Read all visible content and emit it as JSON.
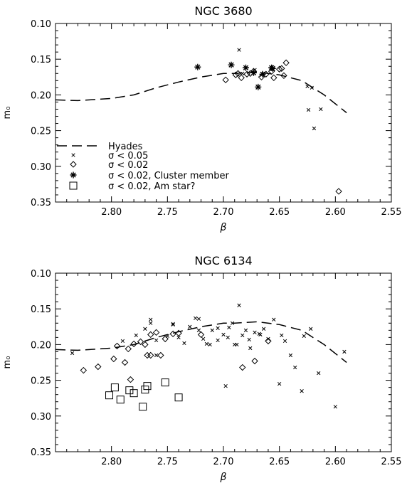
{
  "chart_data": [
    {
      "type": "scatter",
      "title": "NGC 3680",
      "xlabel": "β",
      "ylabel": "m₀",
      "xlim": [
        2.85,
        2.55
      ],
      "ylim": [
        0.1,
        0.35
      ],
      "x_ticks": [
        2.8,
        2.75,
        2.7,
        2.65,
        2.6,
        2.55
      ],
      "x_tick_labels": [
        "2.80",
        "2.75",
        "2.70",
        "2.65",
        "2.60",
        "2.55"
      ],
      "y_ticks": [
        0.1,
        0.15,
        0.2,
        0.25,
        0.3,
        0.35
      ],
      "y_tick_labels": [
        "0.10",
        "0.15",
        "0.20",
        "0.25",
        "0.30",
        "0.35"
      ],
      "grid": false,
      "legend_position": "bottom-left",
      "legend": [
        {
          "marker": "dashed-line",
          "label": "Hyades"
        },
        {
          "marker": "x",
          "label": "σ < 0.05"
        },
        {
          "marker": "diamond",
          "label": "σ < 0.02"
        },
        {
          "marker": "asterisk",
          "label": "σ < 0.02, Cluster member"
        },
        {
          "marker": "square",
          "label": "σ < 0.02, Am star?"
        }
      ],
      "hyades": {
        "x": [
          2.85,
          2.83,
          2.8,
          2.78,
          2.76,
          2.74,
          2.72,
          2.7,
          2.69,
          2.67,
          2.65,
          2.63,
          2.61,
          2.59
        ],
        "y": [
          0.207,
          0.208,
          0.205,
          0.2,
          0.19,
          0.182,
          0.175,
          0.17,
          0.17,
          0.168,
          0.172,
          0.18,
          0.2,
          0.225
        ]
      },
      "series": [
        {
          "marker": "x",
          "x": [
            2.686,
            2.625,
            2.621,
            2.613,
            2.624,
            2.619,
            2.672,
            2.683
          ],
          "y": [
            0.137,
            0.188,
            0.19,
            0.22,
            0.221,
            0.247,
            0.165,
            0.17
          ]
        },
        {
          "marker": "diamond",
          "x": [
            2.698,
            2.689,
            2.684,
            2.679,
            2.673,
            2.666,
            2.662,
            2.655,
            2.648,
            2.644,
            2.65,
            2.646,
            2.657,
            2.597,
            2.687,
            2.676
          ],
          "y": [
            0.179,
            0.172,
            0.176,
            0.171,
            0.167,
            0.175,
            0.171,
            0.176,
            0.163,
            0.155,
            0.164,
            0.173,
            0.167,
            0.335,
            0.17,
            0.17
          ]
        },
        {
          "marker": "asterisk",
          "x": [
            2.723,
            2.693,
            2.68,
            2.673,
            2.665,
            2.669,
            2.656,
            2.657
          ],
          "y": [
            0.161,
            0.158,
            0.162,
            0.169,
            0.171,
            0.189,
            0.163,
            0.162
          ]
        },
        {
          "marker": "square",
          "x": [],
          "y": []
        }
      ]
    },
    {
      "type": "scatter",
      "title": "NGC 6134",
      "xlabel": "β",
      "ylabel": "m₀",
      "xlim": [
        2.85,
        2.55
      ],
      "ylim": [
        0.1,
        0.35
      ],
      "x_ticks": [
        2.8,
        2.75,
        2.7,
        2.65,
        2.6,
        2.55
      ],
      "x_tick_labels": [
        "2.80",
        "2.75",
        "2.70",
        "2.65",
        "2.60",
        "2.55"
      ],
      "y_ticks": [
        0.1,
        0.15,
        0.2,
        0.25,
        0.3,
        0.35
      ],
      "y_tick_labels": [
        "0.10",
        "0.15",
        "0.20",
        "0.25",
        "0.30",
        "0.35"
      ],
      "grid": false,
      "hyades": {
        "x": [
          2.85,
          2.83,
          2.8,
          2.78,
          2.76,
          2.74,
          2.72,
          2.7,
          2.69,
          2.67,
          2.65,
          2.63,
          2.61,
          2.59
        ],
        "y": [
          0.207,
          0.208,
          0.205,
          0.2,
          0.19,
          0.182,
          0.175,
          0.17,
          0.17,
          0.168,
          0.172,
          0.18,
          0.2,
          0.225
        ]
      },
      "series": [
        {
          "marker": "x",
          "x": [
            2.835,
            2.79,
            2.778,
            2.77,
            2.765,
            2.76,
            2.75,
            2.745,
            2.74,
            2.735,
            2.73,
            2.725,
            2.722,
            2.718,
            2.715,
            2.71,
            2.705,
            2.7,
            2.698,
            2.695,
            2.692,
            2.69,
            2.686,
            2.683,
            2.68,
            2.676,
            2.672,
            2.668,
            2.664,
            2.66,
            2.655,
            2.65,
            2.645,
            2.64,
            2.636,
            2.63,
            2.622,
            2.615,
            2.6,
            2.592,
            2.765,
            2.745,
            2.722,
            2.705,
            2.696,
            2.677,
            2.667,
            2.688,
            2.76,
            2.712,
            2.648,
            2.628
          ],
          "y": [
            0.212,
            0.195,
            0.187,
            0.178,
            0.165,
            0.194,
            0.188,
            0.171,
            0.19,
            0.198,
            0.175,
            0.163,
            0.18,
            0.192,
            0.199,
            0.18,
            0.194,
            0.186,
            0.258,
            0.176,
            0.17,
            0.2,
            0.145,
            0.187,
            0.18,
            0.205,
            0.183,
            0.185,
            0.178,
            0.192,
            0.165,
            0.255,
            0.195,
            0.215,
            0.232,
            0.265,
            0.178,
            0.24,
            0.287,
            0.21,
            0.17,
            0.172,
            0.164,
            0.177,
            0.19,
            0.193,
            0.186,
            0.2,
            0.215,
            0.2,
            0.187,
            0.188
          ]
        },
        {
          "marker": "diamond",
          "x": [
            2.825,
            2.812,
            2.798,
            2.788,
            2.785,
            2.78,
            2.77,
            2.765,
            2.76,
            2.752,
            2.745,
            2.74,
            2.72,
            2.683,
            2.672,
            2.66,
            2.795,
            2.768,
            2.756,
            2.774,
            2.765,
            2.783
          ],
          "y": [
            0.236,
            0.231,
            0.22,
            0.225,
            0.206,
            0.199,
            0.2,
            0.186,
            0.183,
            0.192,
            0.185,
            0.184,
            0.186,
            0.232,
            0.223,
            0.195,
            0.202,
            0.215,
            0.215,
            0.196,
            0.215,
            0.249
          ]
        },
        {
          "marker": "asterisk",
          "x": [],
          "y": []
        },
        {
          "marker": "square",
          "x": [
            2.802,
            2.797,
            2.792,
            2.78,
            2.772,
            2.768,
            2.752,
            2.74,
            2.784,
            2.77
          ],
          "y": [
            0.271,
            0.26,
            0.277,
            0.268,
            0.287,
            0.258,
            0.253,
            0.274,
            0.264,
            0.263
          ]
        }
      ]
    }
  ]
}
